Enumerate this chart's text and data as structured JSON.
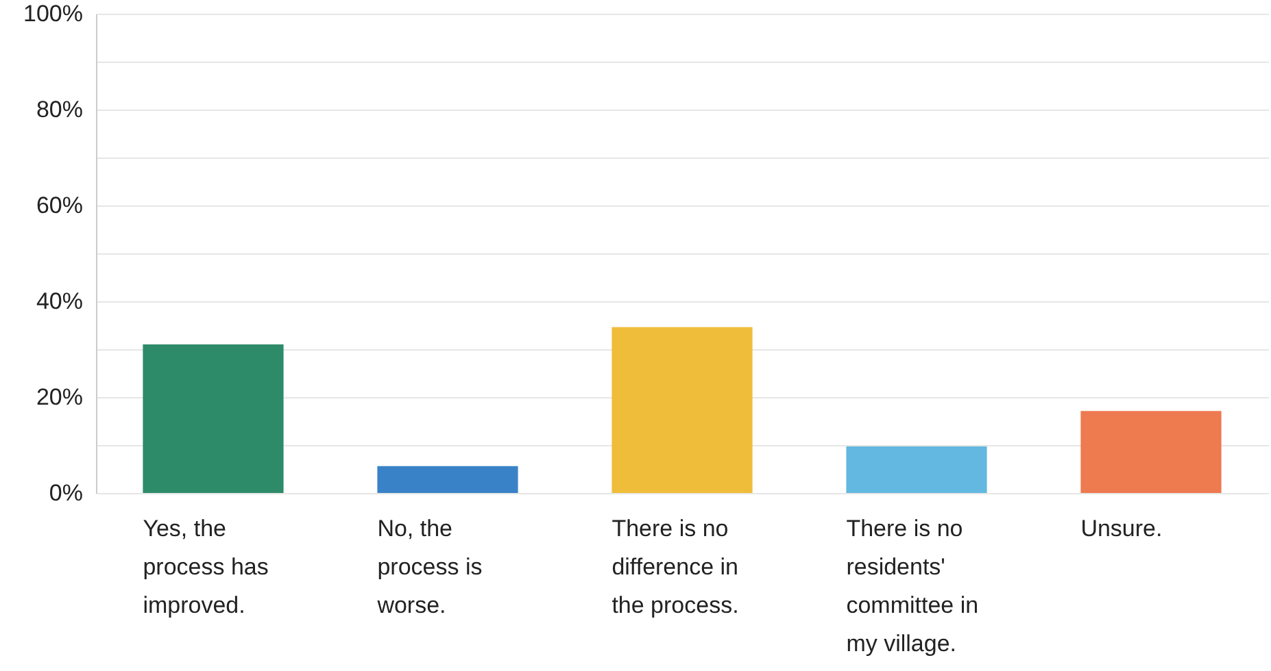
{
  "chart_data": {
    "type": "bar",
    "categories": [
      "Yes, the process has improved.",
      "No, the process is worse.",
      "There is no difference in the process.",
      "There is no residents' committee in my village.",
      "Unsure."
    ],
    "values": [
      31.0,
      5.6,
      34.6,
      9.7,
      17.1
    ],
    "colors": [
      "#2e8b6a",
      "#3a82c8",
      "#f0bd3a",
      "#62b8e0",
      "#ee7a50"
    ],
    "ylim": [
      0,
      100
    ],
    "yticks": [
      {
        "value": 0,
        "label": "0%"
      },
      {
        "value": 10,
        "label": null
      },
      {
        "value": 20,
        "label": "20%"
      },
      {
        "value": 30,
        "label": null
      },
      {
        "value": 40,
        "label": "40%"
      },
      {
        "value": 50,
        "label": null
      },
      {
        "value": 60,
        "label": "60%"
      },
      {
        "value": 70,
        "label": null
      },
      {
        "value": 80,
        "label": "80%"
      },
      {
        "value": 90,
        "label": null
      },
      {
        "value": 100,
        "label": "100%"
      }
    ],
    "grid": "y"
  }
}
